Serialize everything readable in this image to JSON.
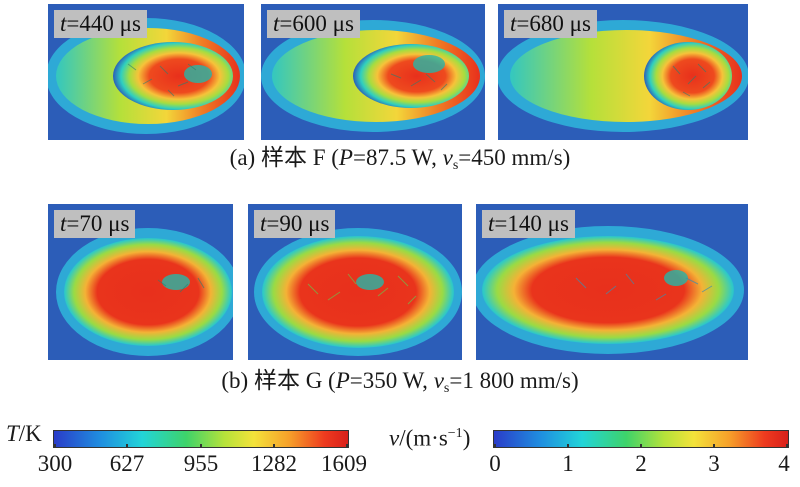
{
  "row_a": {
    "panels": [
      {
        "t_var": "t",
        "t_value": "=440 μs"
      },
      {
        "t_var": "t",
        "t_value": "=600 μs"
      },
      {
        "t_var": "t",
        "t_value": "=680 μs"
      }
    ],
    "caption": {
      "prefix": "(a) 样本 F (",
      "p_var": "P",
      "p_value": "=87.5 W, ",
      "v_var": "v",
      "v_sub": "s",
      "v_value": "=450 mm/s)"
    }
  },
  "row_b": {
    "panels": [
      {
        "t_var": "t",
        "t_value": "=70 μs"
      },
      {
        "t_var": "t",
        "t_value": "=90 μs"
      },
      {
        "t_var": "t",
        "t_value": "=140 μs"
      }
    ],
    "caption": {
      "prefix": "(b) 样本 G (",
      "p_var": "P",
      "p_value": "=350 W, ",
      "v_var": "v",
      "v_sub": "s",
      "v_value": "=1 800 mm/s)"
    }
  },
  "temperature_bar": {
    "title_var": "T",
    "title_unit": "/K",
    "ticks": [
      "300",
      "627",
      "955",
      "1282",
      "1609"
    ]
  },
  "velocity_bar": {
    "title_var": "v",
    "title_unit": "/(m·s",
    "title_sup": "−1",
    "title_close": ")",
    "ticks": [
      "0",
      "1",
      "2",
      "3",
      "4"
    ]
  },
  "colors": {
    "background_blue": "#2c5db8",
    "melt_red": "#e8301c",
    "label_gray": "#bfbfbf"
  }
}
